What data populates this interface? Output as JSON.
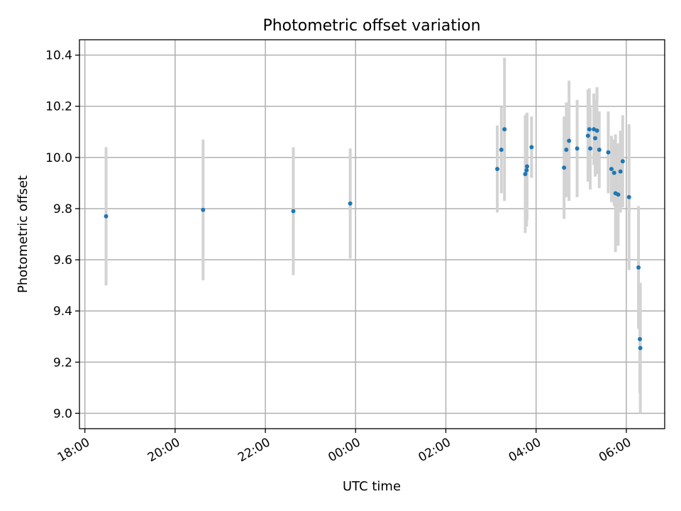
{
  "chart_data": {
    "type": "scatter",
    "title": "Photometric offset variation",
    "xlabel": "UTC time",
    "ylabel": "Photometric offset",
    "grid": true,
    "xlim_hours": [
      -0.12,
      12.85
    ],
    "ylim": [
      8.94,
      10.46
    ],
    "x_ticks": [
      {
        "label": "18:00",
        "hours": 0
      },
      {
        "label": "20:00",
        "hours": 2
      },
      {
        "label": "22:00",
        "hours": 4
      },
      {
        "label": "00:00",
        "hours": 6
      },
      {
        "label": "02:00",
        "hours": 8
      },
      {
        "label": "04:00",
        "hours": 10
      },
      {
        "label": "06:00",
        "hours": 12
      }
    ],
    "y_ticks": [
      {
        "label": "9.0",
        "value": 9.0
      },
      {
        "label": "9.2",
        "value": 9.2
      },
      {
        "label": "9.4",
        "value": 9.4
      },
      {
        "label": "9.6",
        "value": 9.6
      },
      {
        "label": "9.8",
        "value": 9.8
      },
      {
        "label": "10.0",
        "value": 10.0
      },
      {
        "label": "10.2",
        "value": 10.2
      },
      {
        "label": "10.4",
        "value": 10.4
      }
    ],
    "marker_color": "#1f77b4",
    "errorbar_color": "#d3d3d3",
    "series": [
      {
        "points": [
          {
            "x_hours": 0.47,
            "y": 9.77,
            "err": 0.27
          },
          {
            "x_hours": 2.62,
            "y": 9.795,
            "err": 0.275
          },
          {
            "x_hours": 4.62,
            "y": 9.79,
            "err": 0.25
          },
          {
            "x_hours": 5.88,
            "y": 9.82,
            "err": 0.215
          },
          {
            "x_hours": 9.14,
            "y": 9.955,
            "err": 0.17
          },
          {
            "x_hours": 9.23,
            "y": 10.03,
            "err": 0.17
          },
          {
            "x_hours": 9.3,
            "y": 10.11,
            "err": 0.28
          },
          {
            "x_hours": 9.76,
            "y": 9.935,
            "err": 0.23
          },
          {
            "x_hours": 9.79,
            "y": 9.95,
            "err": 0.22
          },
          {
            "x_hours": 9.8,
            "y": 9.965,
            "err": 0.21
          },
          {
            "x_hours": 9.9,
            "y": 10.04,
            "err": 0.12
          },
          {
            "x_hours": 10.62,
            "y": 9.96,
            "err": 0.2
          },
          {
            "x_hours": 10.67,
            "y": 10.03,
            "err": 0.185
          },
          {
            "x_hours": 10.73,
            "y": 10.065,
            "err": 0.235
          },
          {
            "x_hours": 10.91,
            "y": 10.035,
            "err": 0.19
          },
          {
            "x_hours": 11.15,
            "y": 10.085,
            "err": 0.18
          },
          {
            "x_hours": 11.18,
            "y": 10.11,
            "err": 0.16
          },
          {
            "x_hours": 11.2,
            "y": 10.035,
            "err": 0.16
          },
          {
            "x_hours": 11.28,
            "y": 10.11,
            "err": 0.14
          },
          {
            "x_hours": 11.31,
            "y": 10.075,
            "err": 0.15
          },
          {
            "x_hours": 11.35,
            "y": 10.105,
            "err": 0.17
          },
          {
            "x_hours": 11.4,
            "y": 10.03,
            "err": 0.15
          },
          {
            "x_hours": 11.6,
            "y": 10.02,
            "err": 0.16
          },
          {
            "x_hours": 11.67,
            "y": 9.955,
            "err": 0.13
          },
          {
            "x_hours": 11.73,
            "y": 9.94,
            "err": 0.13
          },
          {
            "x_hours": 11.76,
            "y": 9.86,
            "err": 0.23
          },
          {
            "x_hours": 11.82,
            "y": 9.855,
            "err": 0.2
          },
          {
            "x_hours": 11.87,
            "y": 9.945,
            "err": 0.16
          },
          {
            "x_hours": 11.92,
            "y": 9.985,
            "err": 0.18
          },
          {
            "x_hours": 12.06,
            "y": 9.845,
            "err": 0.285
          },
          {
            "x_hours": 12.27,
            "y": 9.57,
            "err": 0.24
          },
          {
            "x_hours": 12.3,
            "y": 9.29,
            "err": 0.21
          },
          {
            "x_hours": 12.31,
            "y": 9.255,
            "err": 0.255
          }
        ]
      }
    ]
  }
}
